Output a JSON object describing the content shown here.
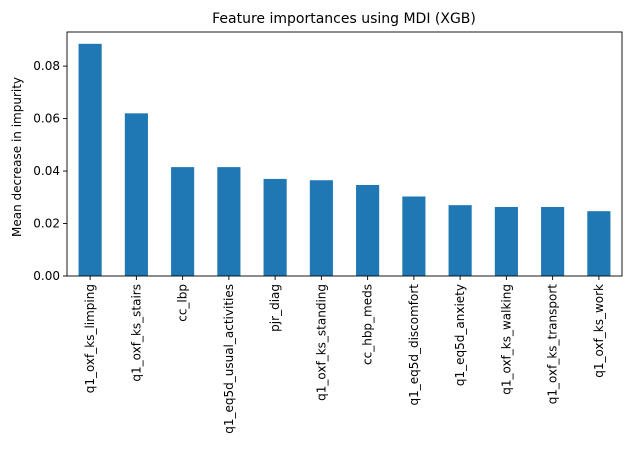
{
  "chart_data": {
    "type": "bar",
    "title": "Feature importances using MDI (XGB)",
    "xlabel": "",
    "ylabel": "Mean decrease in impurity",
    "categories": [
      "q1_oxf_ks_limping",
      "q1_oxf_ks_stairs",
      "cc_lbp",
      "q1_eq5d_usual_activities",
      "pjr_diag",
      "q1_oxf_ks_standing",
      "cc_hbp_meds",
      "q1_eq5d_discomfort",
      "q1_eq5d_anxiety",
      "q1_oxf_ks_walking",
      "q1_oxf_ks_transport",
      "q1_oxf_ks_work"
    ],
    "values": [
      0.0885,
      0.062,
      0.0415,
      0.0415,
      0.037,
      0.0365,
      0.0347,
      0.0303,
      0.027,
      0.0263,
      0.0263,
      0.0247
    ],
    "ylim": [
      0,
      0.093
    ],
    "yticks": [
      0.0,
      0.02,
      0.04,
      0.06,
      0.08
    ],
    "ytick_labels": [
      "0.00",
      "0.02",
      "0.04",
      "0.06",
      "0.08"
    ],
    "bar_color": "#1f77b4",
    "grid": false,
    "legend": "none"
  }
}
